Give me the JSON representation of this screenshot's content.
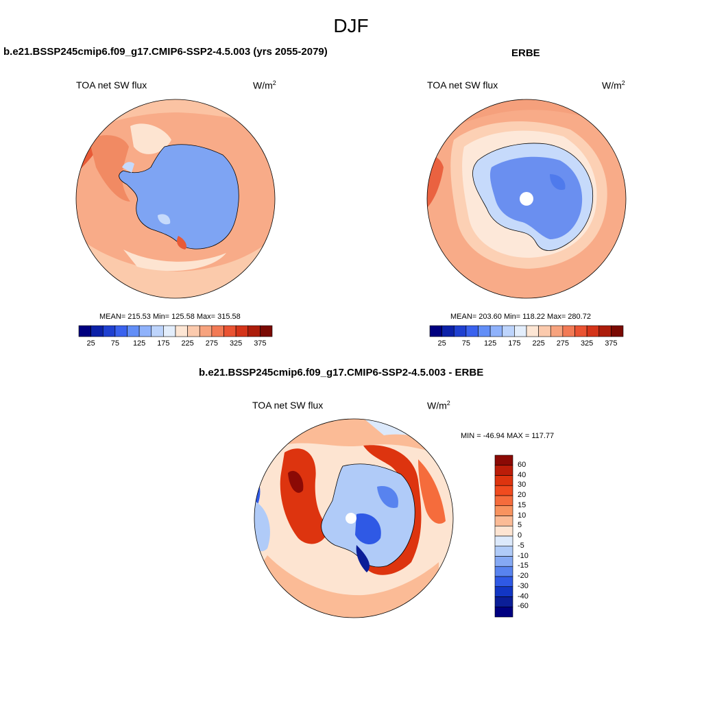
{
  "figure": {
    "title": "DJF"
  },
  "panels": {
    "model": {
      "title": "b.e21.BSSP245cmip6.f09_g17.CMIP6-SSP2-4.5.003 (yrs 2055-2079)",
      "variable": "TOA net SW flux",
      "units_base": "W/m",
      "units_exp": "2",
      "stats": "MEAN= 215.53  Min= 125.58  Max= 315.58"
    },
    "obs": {
      "title": "ERBE",
      "variable": "TOA net SW flux",
      "units_base": "W/m",
      "units_exp": "2",
      "stats": "MEAN= 203.60  Min= 118.22  Max= 280.72"
    },
    "diff": {
      "title": "b.e21.BSSP245cmip6.f09_g17.CMIP6-SSP2-4.5.003 - ERBE",
      "variable": "TOA net SW flux",
      "units_base": "W/m",
      "units_exp": "2",
      "stats": "MIN = -46.94 MAX = 117.77"
    }
  },
  "colorbars": {
    "abs_levels": [
      "25",
      "75",
      "125",
      "175",
      "225",
      "275",
      "325",
      "375"
    ],
    "abs_colors": [
      "#00007f",
      "#0c21a8",
      "#1f40d0",
      "#3a62ee",
      "#628ef7",
      "#8fb2fb",
      "#bdd4fc",
      "#e3eefc",
      "#fde6d4",
      "#fbcaad",
      "#f7a37e",
      "#f27a55",
      "#ea5332",
      "#d43419",
      "#ac1d0b",
      "#7a0a03"
    ],
    "diff_levels": [
      "60",
      "40",
      "30",
      "20",
      "15",
      "10",
      "5",
      "0",
      "-5",
      "-10",
      "-15",
      "-20",
      "-30",
      "-40",
      "-60"
    ],
    "diff_colors": [
      "#8b0a05",
      "#bb1d09",
      "#dd340f",
      "#f04b1f",
      "#f56c3c",
      "#f8935f",
      "#fbbb96",
      "#fde4d2",
      "#dce9fb",
      "#b0cbf8",
      "#85a9f4",
      "#5883ef",
      "#2f59e5",
      "#1236c4",
      "#0b1e98",
      "#000080"
    ]
  },
  "map_colors": {
    "ice_model": "#7ea4f3",
    "ice_obs": "#6a8ff0",
    "ocean_light": "#fcd0b4",
    "ocean_mid": "#f8ab88",
    "ocean_strong": "#f18a63",
    "ocean_very": "#e85a36",
    "pale": "#fde8d9",
    "light_blue": "#c6dafb",
    "coast": "#000000"
  }
}
